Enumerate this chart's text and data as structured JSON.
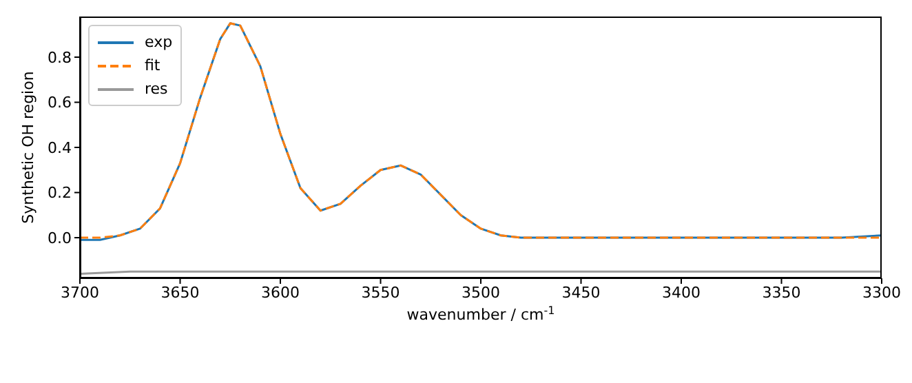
{
  "chart_data": {
    "type": "line",
    "xlabel": "wavenumber / cm$^{-1}$",
    "ylabel": "Synthetic OH region",
    "xlim": [
      3700,
      3300
    ],
    "xticks": [
      3700,
      3650,
      3600,
      3550,
      3500,
      3450,
      3400,
      3350,
      3300
    ],
    "ylim": [
      -0.18,
      0.98
    ],
    "yticks": [
      {
        "value": 0,
        "label": "0.0"
      },
      0.2,
      0.4,
      0.6,
      0.8
    ],
    "legend": "top left",
    "marker": "none",
    "series": [
      {
        "name": "exp",
        "color": "#1f77b4",
        "line_style": "solid",
        "x": [
          3700,
          3690,
          3680,
          3670,
          3660,
          3650,
          3640,
          3630,
          3625,
          3620,
          3610,
          3600,
          3590,
          3580,
          3570,
          3560,
          3550,
          3540,
          3530,
          3520,
          3510,
          3500,
          3490,
          3480,
          3460,
          3440,
          3420,
          3400,
          3380,
          3360,
          3340,
          3320,
          3300
        ],
        "values": [
          -0.01,
          -0.01,
          0.01,
          0.04,
          0.13,
          0.33,
          0.62,
          0.88,
          0.95,
          0.94,
          0.76,
          0.46,
          0.22,
          0.12,
          0.15,
          0.23,
          0.3,
          0.32,
          0.28,
          0.19,
          0.1,
          0.04,
          0.01,
          0.0,
          0.0,
          0.0,
          0.0,
          0.0,
          0.0,
          0.0,
          0.0,
          0.0,
          0.01
        ]
      },
      {
        "name": "fit",
        "color": "#ff7f0e",
        "line_style": "dashed",
        "x": [
          3700,
          3690,
          3680,
          3670,
          3660,
          3650,
          3640,
          3630,
          3625,
          3620,
          3610,
          3600,
          3590,
          3580,
          3570,
          3560,
          3550,
          3540,
          3530,
          3520,
          3510,
          3500,
          3490,
          3480,
          3460,
          3440,
          3420,
          3400,
          3380,
          3360,
          3340,
          3320,
          3300
        ],
        "values": [
          0.0,
          0.0,
          0.01,
          0.04,
          0.13,
          0.33,
          0.62,
          0.88,
          0.95,
          0.94,
          0.76,
          0.46,
          0.22,
          0.12,
          0.15,
          0.23,
          0.3,
          0.32,
          0.28,
          0.19,
          0.1,
          0.04,
          0.01,
          0.0,
          0.0,
          0.0,
          0.0,
          0.0,
          0.0,
          0.0,
          0.0,
          0.0,
          0.0
        ]
      },
      {
        "name": "res",
        "color": "#999999",
        "line_style": "solid",
        "x": [
          3700,
          3675,
          3650,
          3625,
          3600,
          3575,
          3550,
          3525,
          3500,
          3475,
          3450,
          3425,
          3400,
          3375,
          3350,
          3325,
          3300
        ],
        "values": [
          -0.16,
          -0.15,
          -0.15,
          -0.15,
          -0.15,
          -0.15,
          -0.15,
          -0.15,
          -0.15,
          -0.15,
          -0.15,
          -0.15,
          -0.15,
          -0.15,
          -0.15,
          -0.15,
          -0.15
        ]
      }
    ]
  }
}
